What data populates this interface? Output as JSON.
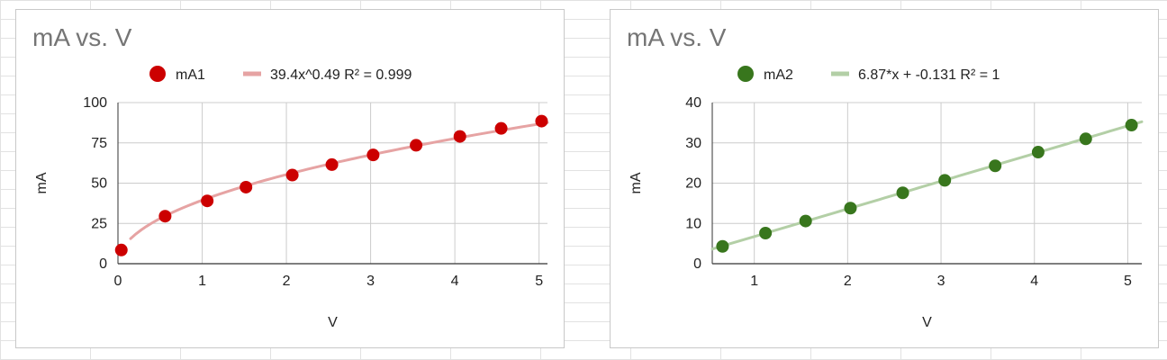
{
  "chart_data": [
    {
      "type": "scatter",
      "title": "mA vs. V",
      "xlabel": "V",
      "ylabel": "mA",
      "xlim": [
        0,
        5.1
      ],
      "ylim": [
        0,
        100
      ],
      "xticks": [
        "0",
        "1",
        "2",
        "3",
        "4",
        "5"
      ],
      "yticks": [
        "0",
        "25",
        "50",
        "75",
        "100"
      ],
      "grid": true,
      "legend": "top",
      "series": [
        {
          "name": "mA1",
          "color": "#cc0000",
          "x": [
            0.04,
            0.56,
            1.06,
            1.52,
            2.07,
            2.54,
            3.03,
            3.54,
            4.06,
            4.55,
            5.03
          ],
          "y": [
            8.5,
            29.5,
            39,
            47.5,
            55,
            61.5,
            67.5,
            73.5,
            79,
            84,
            88.5
          ]
        }
      ],
      "trendline": {
        "label": "39.4x^0.49 R² = 0.999",
        "color": "#e6a3a3",
        "type": "power",
        "a": 39.4,
        "b": 0.49,
        "x_range": [
          0.15,
          5.1
        ]
      }
    },
    {
      "type": "scatter",
      "title": "mA vs. V",
      "xlabel": "V",
      "ylabel": "mA",
      "xlim": [
        0.55,
        5.15
      ],
      "ylim": [
        0,
        40
      ],
      "xticks": [
        "1",
        "2",
        "3",
        "4",
        "5"
      ],
      "yticks": [
        "0",
        "10",
        "20",
        "30",
        "40"
      ],
      "grid": true,
      "legend": "top",
      "series": [
        {
          "name": "mA2",
          "color": "#38761d",
          "x": [
            0.66,
            1.12,
            1.55,
            2.03,
            2.59,
            3.04,
            3.58,
            4.04,
            4.55,
            5.04
          ],
          "y": [
            4.3,
            7.6,
            10.6,
            13.8,
            17.6,
            20.7,
            24.3,
            27.7,
            31,
            34.4
          ]
        }
      ],
      "trendline": {
        "label": "6.87*x + -0.131 R² = 1",
        "color": "#b3cfa6",
        "type": "linear",
        "a": 6.87,
        "b": -0.131,
        "x_range": [
          0.55,
          5.15
        ]
      }
    }
  ]
}
